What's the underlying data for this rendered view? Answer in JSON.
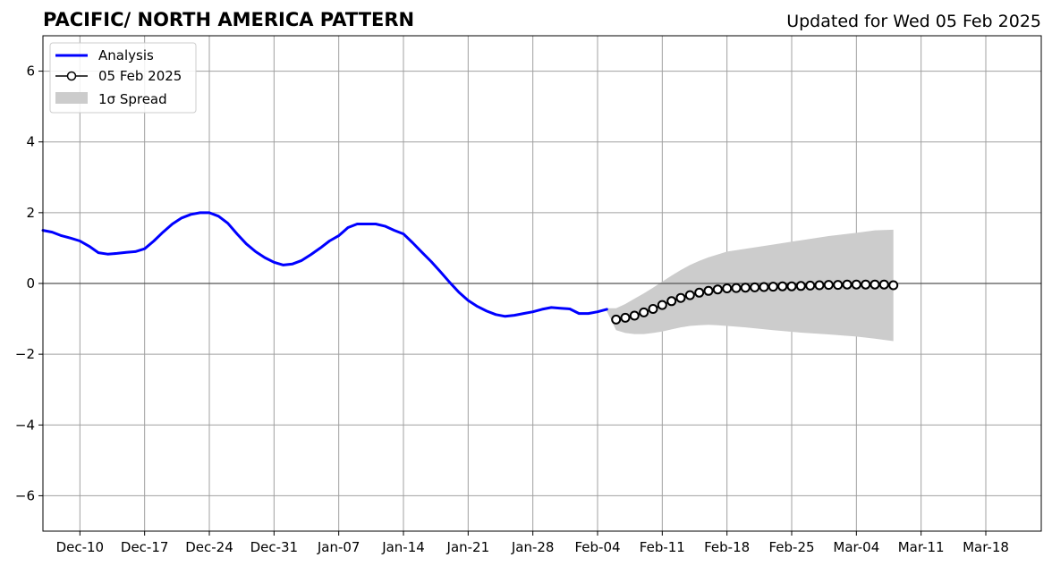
{
  "chart_data": {
    "type": "line",
    "title": "PACIFIC/ NORTH AMERICA PATTERN",
    "subtitle": "Updated for Wed 05 Feb 2025",
    "xlabel": "",
    "ylabel": "",
    "ylim": [
      -7,
      7
    ],
    "xlim": [
      "2024-12-06",
      "2025-03-24"
    ],
    "yticks": [
      -6,
      -4,
      -2,
      0,
      2,
      4,
      6
    ],
    "ytick_labels": [
      "−6",
      "−4",
      "−2",
      "0",
      "2",
      "4",
      "6"
    ],
    "xticks": [
      "2024-12-10",
      "2024-12-17",
      "2024-12-24",
      "2024-12-31",
      "2025-01-07",
      "2025-01-14",
      "2025-01-21",
      "2025-01-28",
      "2025-02-04",
      "2025-02-11",
      "2025-02-18",
      "2025-02-25",
      "2025-03-04",
      "2025-03-11",
      "2025-03-18"
    ],
    "xtick_labels": [
      "Dec-10",
      "Dec-17",
      "Dec-24",
      "Dec-31",
      "Jan-07",
      "Jan-14",
      "Jan-21",
      "Jan-28",
      "Feb-04",
      "Feb-11",
      "Feb-18",
      "Feb-25",
      "Mar-04",
      "Mar-11",
      "Mar-18"
    ],
    "grid": true,
    "zero_line": true,
    "legend_position": "top-left",
    "legend": [
      "Analysis",
      "05 Feb 2025",
      "1σ Spread"
    ],
    "series": [
      {
        "name": "Analysis",
        "color": "#0000ff",
        "style": "line",
        "x": [
          "2024-12-06",
          "2024-12-07",
          "2024-12-08",
          "2024-12-09",
          "2024-12-10",
          "2024-12-11",
          "2024-12-12",
          "2024-12-13",
          "2024-12-14",
          "2024-12-15",
          "2024-12-16",
          "2024-12-17",
          "2024-12-18",
          "2024-12-19",
          "2024-12-20",
          "2024-12-21",
          "2024-12-22",
          "2024-12-23",
          "2024-12-24",
          "2024-12-25",
          "2024-12-26",
          "2024-12-27",
          "2024-12-28",
          "2024-12-29",
          "2024-12-30",
          "2024-12-31",
          "2025-01-01",
          "2025-01-02",
          "2025-01-03",
          "2025-01-04",
          "2025-01-05",
          "2025-01-06",
          "2025-01-07",
          "2025-01-08",
          "2025-01-09",
          "2025-01-10",
          "2025-01-11",
          "2025-01-12",
          "2025-01-13",
          "2025-01-14",
          "2025-01-15",
          "2025-01-16",
          "2025-01-17",
          "2025-01-18",
          "2025-01-19",
          "2025-01-20",
          "2025-01-21",
          "2025-01-22",
          "2025-01-23",
          "2025-01-24",
          "2025-01-25",
          "2025-01-26",
          "2025-01-27",
          "2025-01-28",
          "2025-01-29",
          "2025-01-30",
          "2025-01-31",
          "2025-02-01",
          "2025-02-02",
          "2025-02-03",
          "2025-02-04",
          "2025-02-05"
        ],
        "values": [
          1.5,
          1.45,
          1.35,
          1.28,
          1.2,
          1.05,
          0.87,
          0.83,
          0.85,
          0.88,
          0.9,
          0.98,
          1.2,
          1.45,
          1.68,
          1.85,
          1.95,
          2.0,
          2.0,
          1.9,
          1.7,
          1.4,
          1.12,
          0.9,
          0.73,
          0.6,
          0.52,
          0.55,
          0.65,
          0.82,
          1.0,
          1.2,
          1.35,
          1.58,
          1.68,
          1.68,
          1.68,
          1.62,
          1.5,
          1.4,
          1.15,
          0.88,
          0.62,
          0.33,
          0.03,
          -0.25,
          -0.48,
          -0.65,
          -0.78,
          -0.88,
          -0.93,
          -0.9,
          -0.85,
          -0.8,
          -0.73,
          -0.68,
          -0.7,
          -0.72,
          -0.85,
          -0.85,
          -0.8,
          -0.73
        ]
      },
      {
        "name": "05 Feb 2025",
        "color": "#000000",
        "style": "line-markers",
        "x": [
          "2025-02-06",
          "2025-02-07",
          "2025-02-08",
          "2025-02-09",
          "2025-02-10",
          "2025-02-11",
          "2025-02-12",
          "2025-02-13",
          "2025-02-14",
          "2025-02-15",
          "2025-02-16",
          "2025-02-17",
          "2025-02-18",
          "2025-02-19",
          "2025-02-20",
          "2025-02-21",
          "2025-02-22",
          "2025-02-23",
          "2025-02-24",
          "2025-02-25",
          "2025-02-26",
          "2025-02-27",
          "2025-02-28",
          "2025-03-01",
          "2025-03-02",
          "2025-03-03",
          "2025-03-04",
          "2025-03-05",
          "2025-03-06",
          "2025-03-07",
          "2025-03-08"
        ],
        "values": [
          -1.02,
          -0.97,
          -0.91,
          -0.82,
          -0.72,
          -0.61,
          -0.5,
          -0.41,
          -0.33,
          -0.26,
          -0.21,
          -0.17,
          -0.14,
          -0.13,
          -0.12,
          -0.11,
          -0.1,
          -0.09,
          -0.08,
          -0.08,
          -0.07,
          -0.06,
          -0.05,
          -0.04,
          -0.04,
          -0.03,
          -0.03,
          -0.03,
          -0.03,
          -0.03,
          -0.05
        ]
      }
    ],
    "spread": {
      "name": "1σ Spread",
      "color": "#cccccc",
      "x": [
        "2025-02-05",
        "2025-02-06",
        "2025-02-07",
        "2025-02-08",
        "2025-02-09",
        "2025-02-10",
        "2025-02-11",
        "2025-02-12",
        "2025-02-13",
        "2025-02-14",
        "2025-02-15",
        "2025-02-16",
        "2025-02-17",
        "2025-02-18",
        "2025-02-20",
        "2025-02-23",
        "2025-02-26",
        "2025-03-01",
        "2025-03-04",
        "2025-03-06",
        "2025-03-08"
      ],
      "upper": [
        -0.7,
        -0.7,
        -0.58,
        -0.43,
        -0.28,
        -0.12,
        0.05,
        0.22,
        0.38,
        0.52,
        0.64,
        0.74,
        0.82,
        0.9,
        0.98,
        1.1,
        1.22,
        1.34,
        1.43,
        1.5,
        1.52
      ],
      "lower": [
        -0.78,
        -1.32,
        -1.4,
        -1.43,
        -1.43,
        -1.4,
        -1.36,
        -1.3,
        -1.24,
        -1.2,
        -1.18,
        -1.17,
        -1.18,
        -1.2,
        -1.24,
        -1.32,
        -1.39,
        -1.44,
        -1.5,
        -1.56,
        -1.63
      ]
    }
  }
}
